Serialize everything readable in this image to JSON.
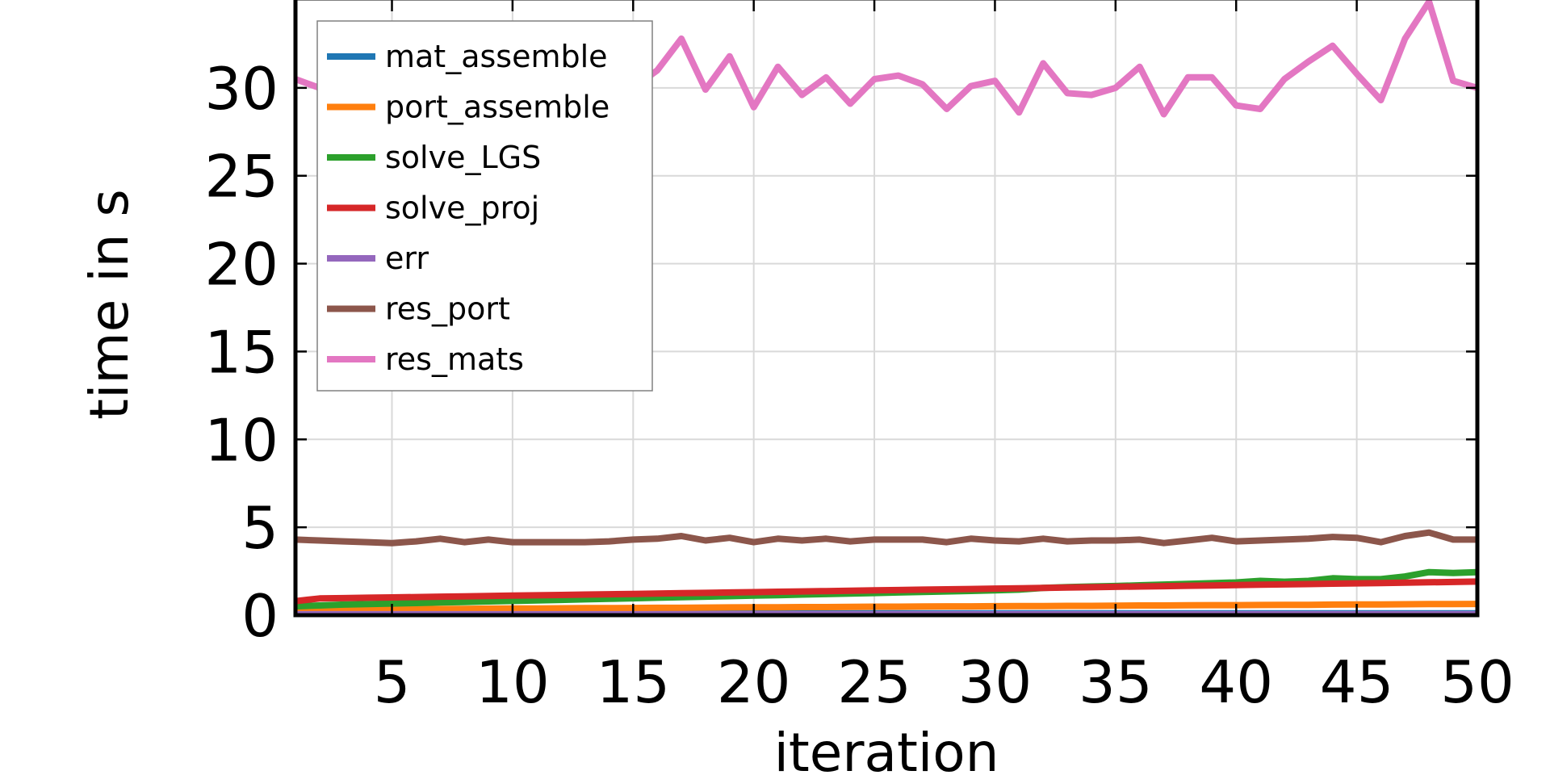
{
  "chart_data": {
    "type": "line",
    "title": "",
    "xlabel": "iteration",
    "ylabel": "time in s",
    "xlim": [
      1,
      50
    ],
    "ylim": [
      0,
      35
    ],
    "xticks": [
      5,
      10,
      15,
      20,
      25,
      30,
      35,
      40,
      45,
      50
    ],
    "yticks": [
      0,
      5,
      10,
      15,
      20,
      25,
      30
    ],
    "grid": true,
    "legend_position": "top-left",
    "x": [
      1,
      2,
      3,
      4,
      5,
      6,
      7,
      8,
      9,
      10,
      11,
      12,
      13,
      14,
      15,
      16,
      17,
      18,
      19,
      20,
      21,
      22,
      23,
      24,
      25,
      26,
      27,
      28,
      29,
      30,
      31,
      32,
      33,
      34,
      35,
      36,
      37,
      38,
      39,
      40,
      41,
      42,
      43,
      44,
      45,
      46,
      47,
      48,
      49,
      50
    ],
    "series": [
      {
        "name": "mat_assemble",
        "color": "#1f77b4",
        "values": [
          0.1,
          0.1,
          0.1,
          0.1,
          0.1,
          0.1,
          0.1,
          0.1,
          0.1,
          0.1,
          0.1,
          0.1,
          0.1,
          0.1,
          0.1,
          0.1,
          0.1,
          0.1,
          0.1,
          0.1,
          0.1,
          0.1,
          0.1,
          0.1,
          0.1,
          0.1,
          0.1,
          0.1,
          0.1,
          0.1,
          0.1,
          0.1,
          0.1,
          0.1,
          0.1,
          0.1,
          0.1,
          0.1,
          0.1,
          0.1,
          0.1,
          0.1,
          0.1,
          0.1,
          0.1,
          0.1,
          0.1,
          0.1,
          0.1,
          0.1
        ]
      },
      {
        "name": "port_assemble",
        "color": "#ff7f0e",
        "values": [
          0.3,
          0.31,
          0.32,
          0.33,
          0.34,
          0.35,
          0.35,
          0.36,
          0.37,
          0.38,
          0.38,
          0.39,
          0.4,
          0.4,
          0.41,
          0.42,
          0.42,
          0.43,
          0.44,
          0.45,
          0.45,
          0.46,
          0.46,
          0.47,
          0.48,
          0.48,
          0.49,
          0.5,
          0.5,
          0.51,
          0.52,
          0.52,
          0.53,
          0.53,
          0.54,
          0.55,
          0.55,
          0.56,
          0.57,
          0.57,
          0.58,
          0.59,
          0.59,
          0.6,
          0.61,
          0.61,
          0.62,
          0.63,
          0.63,
          0.64
        ]
      },
      {
        "name": "solve_LGS",
        "color": "#2ca02c",
        "values": [
          0.5,
          0.55,
          0.6,
          0.63,
          0.66,
          0.69,
          0.72,
          0.75,
          0.78,
          0.81,
          0.84,
          0.87,
          0.9,
          0.93,
          0.96,
          0.99,
          1.02,
          1.05,
          1.08,
          1.11,
          1.14,
          1.17,
          1.2,
          1.23,
          1.26,
          1.29,
          1.32,
          1.35,
          1.38,
          1.41,
          1.45,
          1.55,
          1.6,
          1.63,
          1.66,
          1.7,
          1.74,
          1.78,
          1.82,
          1.86,
          1.95,
          1.9,
          1.95,
          2.1,
          2.05,
          2.05,
          2.2,
          2.45,
          2.4,
          2.45
        ]
      },
      {
        "name": "solve_proj",
        "color": "#d62728",
        "values": [
          0.8,
          0.95,
          0.97,
          0.99,
          1.01,
          1.03,
          1.05,
          1.07,
          1.09,
          1.11,
          1.13,
          1.15,
          1.17,
          1.19,
          1.21,
          1.23,
          1.25,
          1.27,
          1.29,
          1.31,
          1.33,
          1.35,
          1.37,
          1.39,
          1.41,
          1.43,
          1.45,
          1.47,
          1.49,
          1.51,
          1.53,
          1.55,
          1.57,
          1.59,
          1.61,
          1.63,
          1.65,
          1.67,
          1.69,
          1.71,
          1.73,
          1.75,
          1.77,
          1.79,
          1.81,
          1.83,
          1.85,
          1.87,
          1.89,
          1.91
        ]
      },
      {
        "name": "err",
        "color": "#9467bd",
        "values": [
          0.05,
          0.05,
          0.05,
          0.05,
          0.05,
          0.05,
          0.05,
          0.05,
          0.05,
          0.05,
          0.05,
          0.05,
          0.05,
          0.05,
          0.05,
          0.05,
          0.05,
          0.05,
          0.05,
          0.05,
          0.05,
          0.05,
          0.05,
          0.05,
          0.05,
          0.05,
          0.05,
          0.05,
          0.05,
          0.05,
          0.05,
          0.05,
          0.05,
          0.05,
          0.05,
          0.05,
          0.05,
          0.05,
          0.05,
          0.05,
          0.05,
          0.05,
          0.05,
          0.05,
          0.05,
          0.05,
          0.05,
          0.05,
          0.05,
          0.05
        ]
      },
      {
        "name": "res_port",
        "color": "#8c564b",
        "values": [
          4.3,
          4.25,
          4.2,
          4.15,
          4.1,
          4.2,
          4.35,
          4.15,
          4.3,
          4.15,
          4.15,
          4.15,
          4.15,
          4.2,
          4.3,
          4.35,
          4.5,
          4.25,
          4.4,
          4.15,
          4.35,
          4.25,
          4.35,
          4.2,
          4.3,
          4.3,
          4.3,
          4.15,
          4.35,
          4.25,
          4.2,
          4.35,
          4.2,
          4.25,
          4.25,
          4.3,
          4.1,
          4.25,
          4.4,
          4.2,
          4.25,
          4.3,
          4.35,
          4.45,
          4.4,
          4.15,
          4.5,
          4.7,
          4.3,
          4.3
        ]
      },
      {
        "name": "res_mats",
        "color": "#e377c2",
        "values": [
          30.5,
          30.0,
          29.2,
          28.5,
          28.2,
          29.5,
          31.2,
          28.3,
          30.7,
          28.8,
          28.5,
          29.5,
          29.3,
          29.6,
          30.0,
          31.0,
          32.8,
          29.9,
          31.8,
          28.9,
          31.2,
          29.6,
          30.6,
          29.1,
          30.5,
          30.7,
          30.2,
          28.8,
          30.1,
          30.4,
          28.6,
          31.4,
          29.7,
          29.6,
          30.0,
          31.2,
          28.5,
          30.6,
          30.6,
          29.0,
          28.8,
          30.5,
          31.5,
          32.4,
          30.8,
          29.3,
          32.8,
          34.9,
          30.4,
          30.0
        ]
      }
    ]
  }
}
